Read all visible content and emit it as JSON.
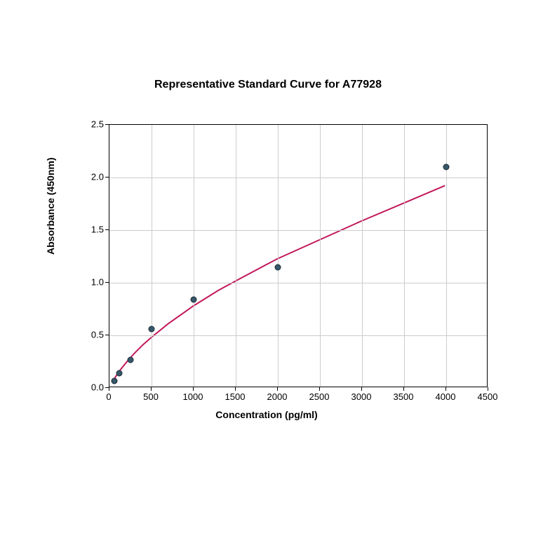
{
  "chart": {
    "type": "scatter",
    "title": "Representative Standard Curve for A77928",
    "title_fontsize": 16,
    "xlabel": "Concentration (pg/ml)",
    "ylabel": "Absorbance (450nm)",
    "label_fontsize": 14,
    "tick_fontsize": 13,
    "background_color": "#ffffff",
    "grid_color": "#cccccc",
    "border_color": "#000000",
    "xlim": [
      0,
      4500
    ],
    "ylim": [
      0,
      2.5
    ],
    "xticks": [
      0,
      500,
      1000,
      1500,
      2000,
      2500,
      3000,
      3500,
      4000,
      4500
    ],
    "yticks": [
      0.0,
      0.5,
      1.0,
      1.5,
      2.0,
      2.5
    ],
    "scatter": {
      "x": [
        62,
        120,
        250,
        500,
        1000,
        2000,
        4000
      ],
      "y": [
        0.07,
        0.14,
        0.27,
        0.56,
        0.84,
        1.15,
        2.1
      ],
      "marker_color": "#37586b",
      "marker_edge_color": "#1a2a35",
      "marker_size": 9
    },
    "curve": {
      "color": "#c2185b",
      "width": 2,
      "x": [
        30,
        62,
        120,
        200,
        300,
        400,
        500,
        700,
        1000,
        1300,
        1600,
        2000,
        2500,
        3000,
        3500,
        4000
      ],
      "y": [
        0.04,
        0.08,
        0.15,
        0.23,
        0.32,
        0.4,
        0.47,
        0.6,
        0.77,
        0.92,
        1.05,
        1.22,
        1.4,
        1.58,
        1.75,
        1.92
      ]
    }
  }
}
